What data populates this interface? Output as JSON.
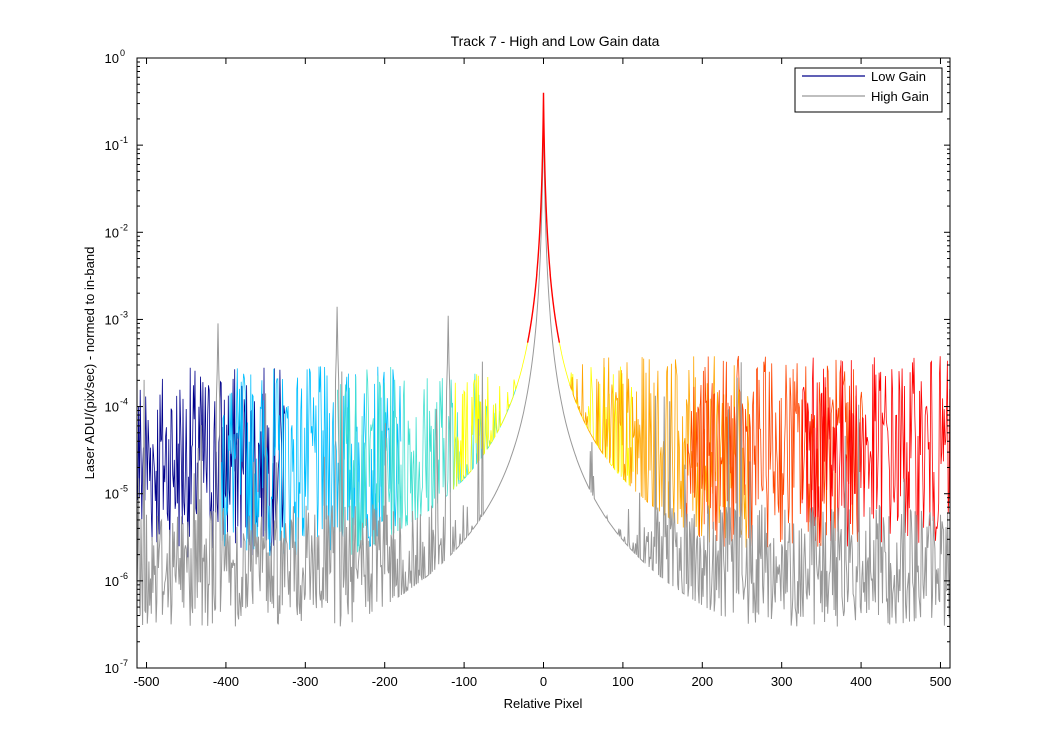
{
  "chart_data": {
    "type": "line",
    "title": "Track 7 - High and Low Gain data",
    "xlabel": "Relative Pixel",
    "ylabel": "Laser ADU/(pix/sec) - normed to in-band",
    "xlim": [
      -512,
      512
    ],
    "ylim": [
      1e-07,
      1
    ],
    "yscale": "log",
    "grid": false,
    "legend_position": "top-right",
    "x_ticks": [
      {
        "value": -500,
        "label": "-500"
      },
      {
        "value": -400,
        "label": "-400"
      },
      {
        "value": -300,
        "label": "-300"
      },
      {
        "value": -200,
        "label": "-200"
      },
      {
        "value": -100,
        "label": "-100"
      },
      {
        "value": 0,
        "label": "0"
      },
      {
        "value": 100,
        "label": "100"
      },
      {
        "value": 200,
        "label": "200"
      },
      {
        "value": 300,
        "label": "300"
      },
      {
        "value": 400,
        "label": "400"
      },
      {
        "value": 500,
        "label": "500"
      }
    ],
    "y_ticks": [
      {
        "value": 1,
        "base": "10",
        "exp": "0"
      },
      {
        "value": 0.1,
        "base": "10",
        "exp": "-1"
      },
      {
        "value": 0.01,
        "base": "10",
        "exp": "-2"
      },
      {
        "value": 0.001,
        "base": "10",
        "exp": "-3"
      },
      {
        "value": 0.0001,
        "base": "10",
        "exp": "-4"
      },
      {
        "value": 1e-05,
        "base": "10",
        "exp": "-5"
      },
      {
        "value": 1e-06,
        "base": "10",
        "exp": "-6"
      },
      {
        "value": 1e-07,
        "base": "10",
        "exp": "-7"
      }
    ],
    "legend": [
      {
        "name": "Low Gain",
        "color": "#00008b"
      },
      {
        "name": "High Gain",
        "color": "#999999"
      }
    ],
    "colormap": [
      "#00008b",
      "#00bfff",
      "#40e0d0",
      "#ffff00",
      "#ffa500",
      "#ff4500",
      "#ff0000"
    ],
    "features": {
      "peak": {
        "x": 0,
        "y_low_gain": 0.4,
        "y_high_gain": 0.3
      },
      "spikes_high_gain": [
        {
          "x": -410,
          "y": 0.0009
        },
        {
          "x": -260,
          "y": 0.0014
        },
        {
          "x": -120,
          "y": 0.0011
        }
      ],
      "low_gain_noise_floor": 3e-05,
      "high_gain_noise_floor": 1.5e-06
    }
  }
}
